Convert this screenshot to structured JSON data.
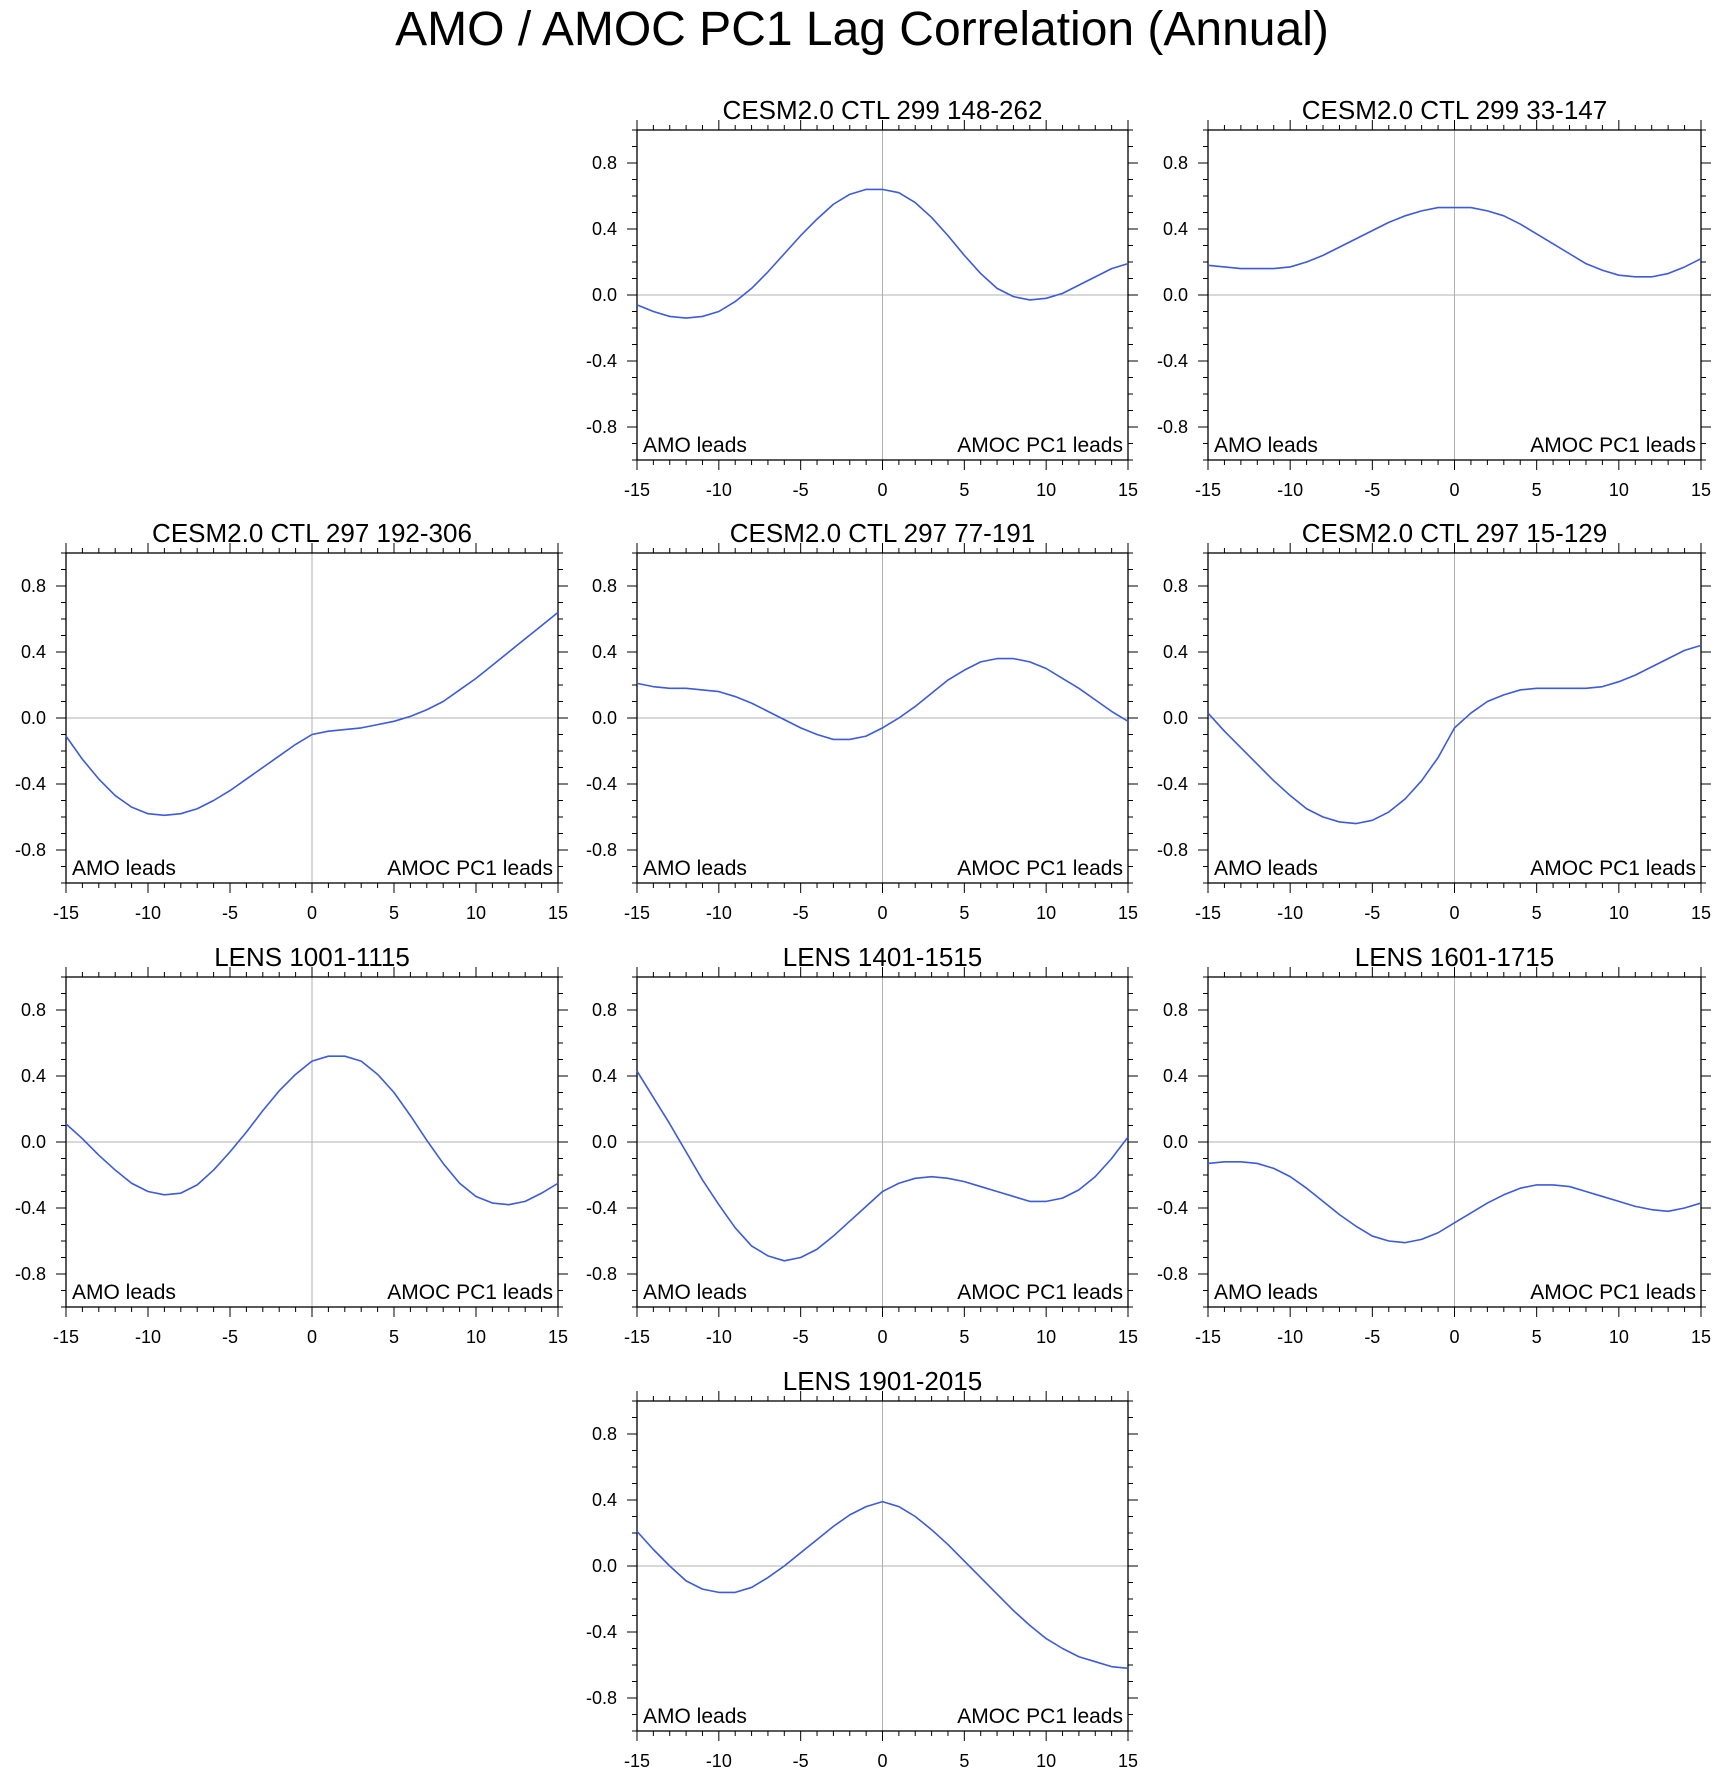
{
  "title": "AMO / AMOC PC1 Lag Correlation (Annual)",
  "colors": {
    "line": "#3b5bdb",
    "axis": "#000000",
    "zero_line": "#b0b0b0"
  },
  "chart_data": [
    {
      "type": "line",
      "title": "CESM2.0 CTL 299 148-262",
      "left_label": "AMO leads",
      "right_label": "AMOC PC1 leads",
      "xlim": [
        -15,
        15
      ],
      "ylim": [
        -1.0,
        1.0
      ],
      "xticks": [
        "-15",
        "-10",
        "-5",
        "0",
        "5",
        "10",
        "15"
      ],
      "yticks": [
        "0.8",
        "0.4",
        "0.0",
        "-0.4",
        "-0.8"
      ],
      "x": [
        -15,
        -14,
        -13,
        -12,
        -11,
        -10,
        -9,
        -8,
        -7,
        -6,
        -5,
        -4,
        -3,
        -2,
        -1,
        0,
        1,
        2,
        3,
        4,
        5,
        6,
        7,
        8,
        9,
        10,
        11,
        12,
        13,
        14,
        15
      ],
      "y": [
        -0.06,
        -0.1,
        -0.13,
        -0.14,
        -0.13,
        -0.1,
        -0.04,
        0.04,
        0.14,
        0.25,
        0.36,
        0.46,
        0.55,
        0.61,
        0.64,
        0.64,
        0.62,
        0.56,
        0.47,
        0.36,
        0.24,
        0.13,
        0.04,
        -0.01,
        -0.03,
        -0.02,
        0.01,
        0.06,
        0.11,
        0.16,
        0.19
      ]
    },
    {
      "type": "line",
      "title": "CESM2.0 CTL 299 33-147",
      "left_label": "AMO leads",
      "right_label": "AMOC PC1 leads",
      "xlim": [
        -15,
        15
      ],
      "ylim": [
        -1.0,
        1.0
      ],
      "xticks": [
        "-15",
        "-10",
        "-5",
        "0",
        "5",
        "10",
        "15"
      ],
      "yticks": [
        "0.8",
        "0.4",
        "0.0",
        "-0.4",
        "-0.8"
      ],
      "x": [
        -15,
        -14,
        -13,
        -12,
        -11,
        -10,
        -9,
        -8,
        -7,
        -6,
        -5,
        -4,
        -3,
        -2,
        -1,
        0,
        1,
        2,
        3,
        4,
        5,
        6,
        7,
        8,
        9,
        10,
        11,
        12,
        13,
        14,
        15
      ],
      "y": [
        0.18,
        0.17,
        0.16,
        0.16,
        0.16,
        0.17,
        0.2,
        0.24,
        0.29,
        0.34,
        0.39,
        0.44,
        0.48,
        0.51,
        0.53,
        0.53,
        0.53,
        0.51,
        0.48,
        0.43,
        0.37,
        0.31,
        0.25,
        0.19,
        0.15,
        0.12,
        0.11,
        0.11,
        0.13,
        0.17,
        0.22
      ]
    },
    {
      "type": "line",
      "title": "CESM2.0 CTL 297 192-306",
      "left_label": "AMO leads",
      "right_label": "AMOC PC1 leads",
      "xlim": [
        -15,
        15
      ],
      "ylim": [
        -1.0,
        1.0
      ],
      "xticks": [
        "-15",
        "-10",
        "-5",
        "0",
        "5",
        "10",
        "15"
      ],
      "yticks": [
        "0.8",
        "0.4",
        "0.0",
        "-0.4",
        "-0.8"
      ],
      "x": [
        -15,
        -14,
        -13,
        -12,
        -11,
        -10,
        -9,
        -8,
        -7,
        -6,
        -5,
        -4,
        -3,
        -2,
        -1,
        0,
        1,
        2,
        3,
        4,
        5,
        6,
        7,
        8,
        9,
        10,
        11,
        12,
        13,
        14,
        15
      ],
      "y": [
        -0.11,
        -0.25,
        -0.37,
        -0.47,
        -0.54,
        -0.58,
        -0.59,
        -0.58,
        -0.55,
        -0.5,
        -0.44,
        -0.37,
        -0.3,
        -0.23,
        -0.16,
        -0.1,
        -0.08,
        -0.07,
        -0.06,
        -0.04,
        -0.02,
        0.01,
        0.05,
        0.1,
        0.17,
        0.24,
        0.32,
        0.4,
        0.48,
        0.56,
        0.64
      ]
    },
    {
      "type": "line",
      "title": "CESM2.0 CTL 297 77-191",
      "left_label": "AMO leads",
      "right_label": "AMOC PC1 leads",
      "xlim": [
        -15,
        15
      ],
      "ylim": [
        -1.0,
        1.0
      ],
      "xticks": [
        "-15",
        "-10",
        "-5",
        "0",
        "5",
        "10",
        "15"
      ],
      "yticks": [
        "0.8",
        "0.4",
        "0.0",
        "-0.4",
        "-0.8"
      ],
      "x": [
        -15,
        -14,
        -13,
        -12,
        -11,
        -10,
        -9,
        -8,
        -7,
        -6,
        -5,
        -4,
        -3,
        -2,
        -1,
        0,
        1,
        2,
        3,
        4,
        5,
        6,
        7,
        8,
        9,
        10,
        11,
        12,
        13,
        14,
        15
      ],
      "y": [
        0.21,
        0.19,
        0.18,
        0.18,
        0.17,
        0.16,
        0.13,
        0.09,
        0.04,
        -0.01,
        -0.06,
        -0.1,
        -0.13,
        -0.13,
        -0.11,
        -0.06,
        0.0,
        0.07,
        0.15,
        0.23,
        0.29,
        0.34,
        0.36,
        0.36,
        0.34,
        0.3,
        0.24,
        0.18,
        0.11,
        0.04,
        -0.02
      ]
    },
    {
      "type": "line",
      "title": "CESM2.0 CTL 297 15-129",
      "left_label": "AMO leads",
      "right_label": "AMOC PC1 leads",
      "xlim": [
        -15,
        15
      ],
      "ylim": [
        -1.0,
        1.0
      ],
      "xticks": [
        "-15",
        "-10",
        "-5",
        "0",
        "5",
        "10",
        "15"
      ],
      "yticks": [
        "0.8",
        "0.4",
        "0.0",
        "-0.4",
        "-0.8"
      ],
      "x": [
        -15,
        -14,
        -13,
        -12,
        -11,
        -10,
        -9,
        -8,
        -7,
        -6,
        -5,
        -4,
        -3,
        -2,
        -1,
        0,
        1,
        2,
        3,
        4,
        5,
        6,
        7,
        8,
        9,
        10,
        11,
        12,
        13,
        14,
        15
      ],
      "y": [
        0.03,
        -0.08,
        -0.18,
        -0.28,
        -0.38,
        -0.47,
        -0.55,
        -0.6,
        -0.63,
        -0.64,
        -0.62,
        -0.57,
        -0.49,
        -0.38,
        -0.24,
        -0.06,
        0.03,
        0.1,
        0.14,
        0.17,
        0.18,
        0.18,
        0.18,
        0.18,
        0.19,
        0.22,
        0.26,
        0.31,
        0.36,
        0.41,
        0.44
      ]
    },
    {
      "type": "line",
      "title": "LENS 1001-1115",
      "left_label": "AMO leads",
      "right_label": "AMOC PC1 leads",
      "xlim": [
        -15,
        15
      ],
      "ylim": [
        -1.0,
        1.0
      ],
      "xticks": [
        "-15",
        "-10",
        "-5",
        "0",
        "5",
        "10",
        "15"
      ],
      "yticks": [
        "0.8",
        "0.4",
        "0.0",
        "-0.4",
        "-0.8"
      ],
      "x": [
        -15,
        -14,
        -13,
        -12,
        -11,
        -10,
        -9,
        -8,
        -7,
        -6,
        -5,
        -4,
        -3,
        -2,
        -1,
        0,
        1,
        2,
        3,
        4,
        5,
        6,
        7,
        8,
        9,
        10,
        11,
        12,
        13,
        14,
        15
      ],
      "y": [
        0.11,
        0.02,
        -0.08,
        -0.17,
        -0.25,
        -0.3,
        -0.32,
        -0.31,
        -0.26,
        -0.17,
        -0.06,
        0.06,
        0.19,
        0.31,
        0.41,
        0.49,
        0.52,
        0.52,
        0.49,
        0.41,
        0.3,
        0.16,
        0.01,
        -0.13,
        -0.25,
        -0.33,
        -0.37,
        -0.38,
        -0.36,
        -0.31,
        -0.25
      ]
    },
    {
      "type": "line",
      "title": "LENS 1401-1515",
      "left_label": "AMO leads",
      "right_label": "AMOC PC1 leads",
      "xlim": [
        -15,
        15
      ],
      "ylim": [
        -1.0,
        1.0
      ],
      "xticks": [
        "-15",
        "-10",
        "-5",
        "0",
        "5",
        "10",
        "15"
      ],
      "yticks": [
        "0.8",
        "0.4",
        "0.0",
        "-0.4",
        "-0.8"
      ],
      "x": [
        -15,
        -14,
        -13,
        -12,
        -11,
        -10,
        -9,
        -8,
        -7,
        -6,
        -5,
        -4,
        -3,
        -2,
        -1,
        0,
        1,
        2,
        3,
        4,
        5,
        6,
        7,
        8,
        9,
        10,
        11,
        12,
        13,
        14,
        15
      ],
      "y": [
        0.43,
        0.27,
        0.11,
        -0.06,
        -0.23,
        -0.38,
        -0.52,
        -0.63,
        -0.69,
        -0.72,
        -0.7,
        -0.65,
        -0.57,
        -0.48,
        -0.39,
        -0.3,
        -0.25,
        -0.22,
        -0.21,
        -0.22,
        -0.24,
        -0.27,
        -0.3,
        -0.33,
        -0.36,
        -0.36,
        -0.34,
        -0.29,
        -0.21,
        -0.1,
        0.03
      ]
    },
    {
      "type": "line",
      "title": "LENS 1601-1715",
      "left_label": "AMO leads",
      "right_label": "AMOC PC1 leads",
      "xlim": [
        -15,
        15
      ],
      "ylim": [
        -1.0,
        1.0
      ],
      "xticks": [
        "-15",
        "-10",
        "-5",
        "0",
        "5",
        "10",
        "15"
      ],
      "yticks": [
        "0.8",
        "0.4",
        "0.0",
        "-0.4",
        "-0.8"
      ],
      "x": [
        -15,
        -14,
        -13,
        -12,
        -11,
        -10,
        -9,
        -8,
        -7,
        -6,
        -5,
        -4,
        -3,
        -2,
        -1,
        0,
        1,
        2,
        3,
        4,
        5,
        6,
        7,
        8,
        9,
        10,
        11,
        12,
        13,
        14,
        15
      ],
      "y": [
        -0.13,
        -0.12,
        -0.12,
        -0.13,
        -0.16,
        -0.21,
        -0.28,
        -0.36,
        -0.44,
        -0.51,
        -0.57,
        -0.6,
        -0.61,
        -0.59,
        -0.55,
        -0.49,
        -0.43,
        -0.37,
        -0.32,
        -0.28,
        -0.26,
        -0.26,
        -0.27,
        -0.3,
        -0.33,
        -0.36,
        -0.39,
        -0.41,
        -0.42,
        -0.4,
        -0.37
      ]
    },
    {
      "type": "line",
      "title": "LENS 1901-2015",
      "left_label": "AMO leads",
      "right_label": "AMOC PC1 leads",
      "xlim": [
        -15,
        15
      ],
      "ylim": [
        -1.0,
        1.0
      ],
      "xticks": [
        "-15",
        "-10",
        "-5",
        "0",
        "5",
        "10",
        "15"
      ],
      "yticks": [
        "0.8",
        "0.4",
        "0.0",
        "-0.4",
        "-0.8"
      ],
      "x": [
        -15,
        -14,
        -13,
        -12,
        -11,
        -10,
        -9,
        -8,
        -7,
        -6,
        -5,
        -4,
        -3,
        -2,
        -1,
        0,
        1,
        2,
        3,
        4,
        5,
        6,
        7,
        8,
        9,
        10,
        11,
        12,
        13,
        14,
        15
      ],
      "y": [
        0.21,
        0.1,
        0.0,
        -0.09,
        -0.14,
        -0.16,
        -0.16,
        -0.13,
        -0.07,
        0.0,
        0.08,
        0.16,
        0.24,
        0.31,
        0.36,
        0.39,
        0.36,
        0.3,
        0.22,
        0.13,
        0.03,
        -0.07,
        -0.17,
        -0.27,
        -0.36,
        -0.44,
        -0.5,
        -0.55,
        -0.58,
        -0.61,
        -0.62
      ]
    }
  ]
}
